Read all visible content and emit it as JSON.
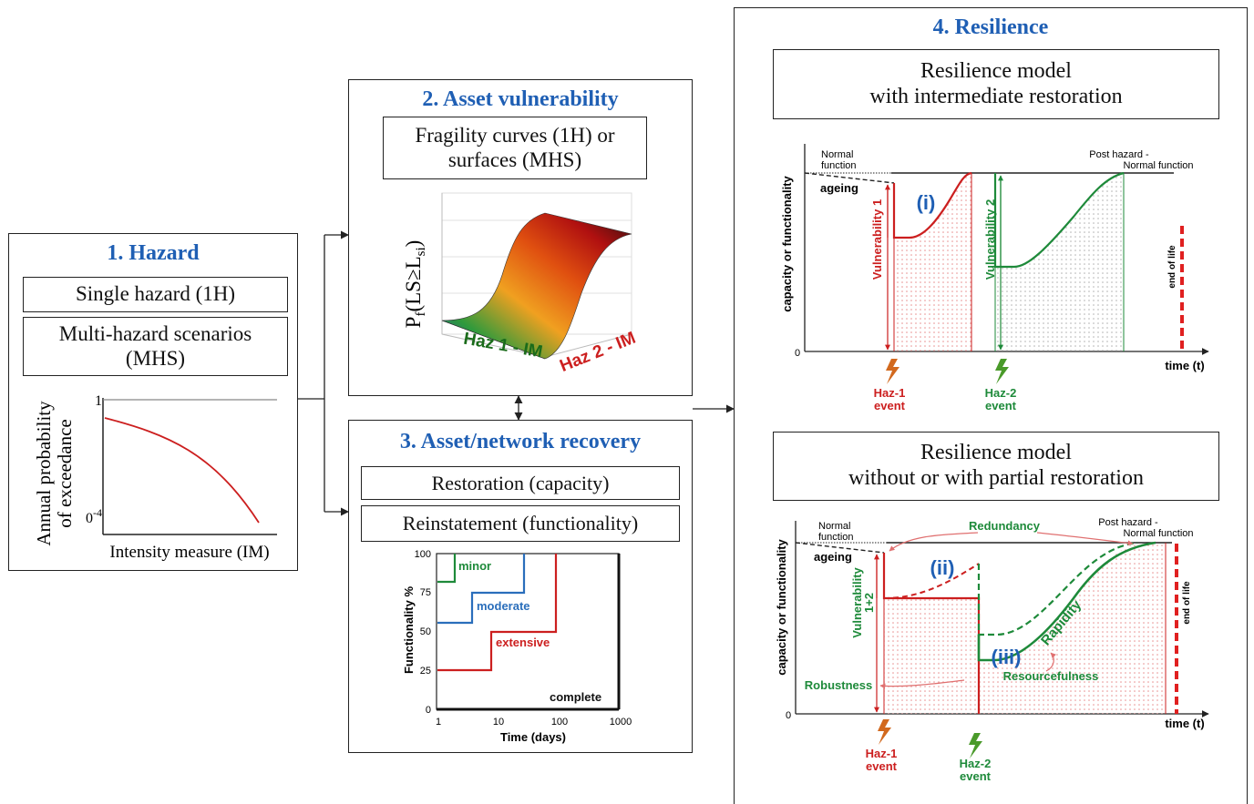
{
  "hazard": {
    "title": "1. Hazard",
    "box1": "Single hazard (1H)",
    "box2": "Multi-hazard scenarios\n(MHS)",
    "chart": {
      "ylabel_1": "Annual probability",
      "ylabel_2": "of exceedance",
      "ytick_top": "1",
      "ytick_bottom": "0",
      "ytick_bottom_exp": "-4",
      "xlabel": "Intensity measure (IM)"
    }
  },
  "vulnerability": {
    "title": "2. Asset vulnerability",
    "box": "Fragility curves (1H) or\nsurfaces (MHS)",
    "surface": {
      "zlabel_main": "P",
      "zlabel_sub": "f",
      "zlabel_rest": "(LS",
      "zlabel_ge": "≥",
      "zlabel_ls": "L",
      "zlabel_si": "si",
      "zlabel_close": ")",
      "axis1": "Haz 1 - IM",
      "axis2": "Haz 2 - IM"
    }
  },
  "recovery": {
    "title": "3. Asset/network recovery",
    "box1": "Restoration (capacity)",
    "box2": "Reinstatement (functionality)",
    "chart": {
      "ylabel": "Functionality %",
      "xlabel": "Time (days)",
      "yticks": [
        "0",
        "25",
        "50",
        "75",
        "100"
      ],
      "xticks": [
        "1",
        "10",
        "100",
        "1000"
      ],
      "labels": {
        "minor": "minor",
        "moderate": "moderate",
        "extensive": "extensive",
        "complete": "complete"
      }
    }
  },
  "resilience": {
    "title": "4. Resilience",
    "model1": {
      "title": "Resilience model\nwith intermediate restoration",
      "ylabel": "capacity or functionality",
      "normal_1": "Normal",
      "normal_2": "function",
      "ageing": "ageing",
      "post_1": "Post hazard -",
      "post_2": "Normal function",
      "marker": "(i)",
      "vuln1": "Vulnerability 1",
      "vuln2": "Vulnerability 2",
      "end_of_life": "end of life",
      "zero": "0",
      "time": "time (t)",
      "haz1_1": "Haz-1",
      "haz1_2": "event",
      "haz2_1": "Haz-2",
      "haz2_2": "event"
    },
    "model2": {
      "title": "Resilience model\nwithout or with partial restoration",
      "ylabel": "capacity or functionality",
      "normal_1": "Normal",
      "normal_2": "function",
      "ageing": "ageing",
      "post_1": "Post hazard -",
      "post_2": "Normal function",
      "redundancy": "Redundancy",
      "marker2": "(ii)",
      "marker3": "(iii)",
      "vuln_1": "Vulnerability",
      "vuln_2": "1+2",
      "rapidity": "Rapidity",
      "resourcefulness": "Resourcefulness",
      "robustness": "Robustness",
      "end_of_life": "end of life",
      "zero": "0",
      "time": "time (t)",
      "haz1_1": "Haz-1",
      "haz1_2": "event",
      "haz2_1": "Haz-2",
      "haz2_2": "event"
    }
  },
  "colors": {
    "title_blue": "#1f5fb4",
    "red": "#cc1f1f",
    "green": "#1e8a3a",
    "blue": "#2a6ebb",
    "dark_green": "#1a6b1a"
  }
}
